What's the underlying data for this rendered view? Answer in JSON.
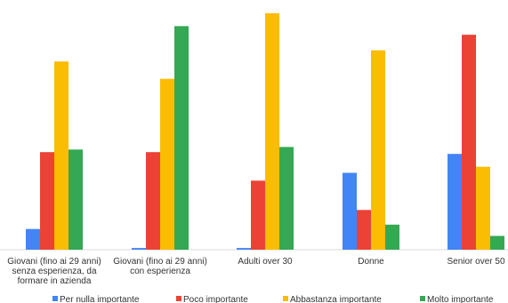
{
  "chart_data": {
    "type": "bar",
    "categories": [
      [
        "Giovani (fino ai 29 anni)",
        "senza esperienza, da",
        "formare in azienda"
      ],
      [
        "Giovani (fino ai 29 anni)",
        "con esperienza"
      ],
      [
        "Adulti over 30"
      ],
      [
        "Donne"
      ],
      [
        "Senior over 50"
      ]
    ],
    "series": [
      {
        "name": "Per nulla importante",
        "color": "#4285F4",
        "values": [
          2.4,
          0.2,
          0.2,
          8.9,
          11.1
        ]
      },
      {
        "name": "Poco importante",
        "color": "#EA4335",
        "values": [
          11.3,
          11.3,
          8.0,
          4.6,
          24.9
        ]
      },
      {
        "name": "Abbastanza importante",
        "color": "#FBBC04",
        "values": [
          21.8,
          19.8,
          27.4,
          23.1,
          9.6
        ]
      },
      {
        "name": "Molto importante",
        "color": "#34A853",
        "values": [
          11.6,
          25.9,
          11.9,
          2.9,
          1.6
        ]
      }
    ],
    "ylim": [
      0,
      28
    ],
    "grid": false,
    "legend_position": "bottom"
  }
}
